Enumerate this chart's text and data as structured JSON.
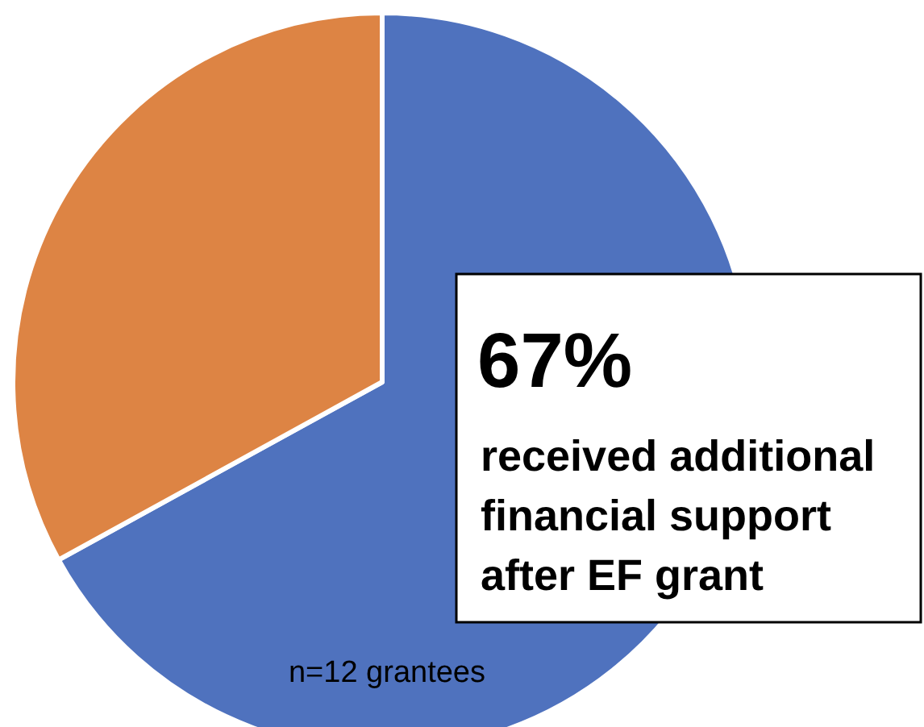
{
  "chart_data": {
    "type": "pie",
    "categories": [
      "received additional financial support after EF grant",
      null
    ],
    "values": [
      67,
      33
    ],
    "colors": [
      "#4f72be",
      "#dd8444"
    ],
    "value_labels": [
      "67%",
      null
    ],
    "annotations": [
      "n=12 grantees"
    ]
  }
}
